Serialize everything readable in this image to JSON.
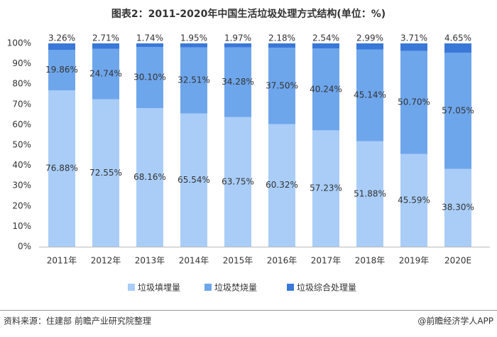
{
  "chart_data": {
    "type": "stacked_bar",
    "title": "图表2：2011-2020年中国生活垃圾处理方式结构(单位：%)",
    "categories": [
      "2011年",
      "2012年",
      "2013年",
      "2014年",
      "2015年",
      "2016年",
      "2017年",
      "2018年",
      "2019年",
      "2020E"
    ],
    "series": [
      {
        "name": "垃圾填埋量",
        "color": "#a9cdf7",
        "values": [
          76.88,
          72.55,
          68.16,
          65.54,
          63.75,
          60.32,
          57.23,
          51.88,
          45.59,
          38.3
        ],
        "value_labels": [
          "76.88%",
          "72.55%",
          "68.16%",
          "65.54%",
          "63.75%",
          "60.32%",
          "57.23%",
          "51.88%",
          "45.59%",
          "38.30%"
        ]
      },
      {
        "name": "垃圾焚烧量",
        "color": "#6ea6ec",
        "values": [
          19.86,
          24.74,
          30.1,
          32.51,
          34.28,
          37.5,
          40.24,
          45.14,
          50.7,
          57.05
        ],
        "value_labels": [
          "19.86%",
          "24.74%",
          "30.10%",
          "32.51%",
          "34.28%",
          "37.50%",
          "40.24%",
          "45.14%",
          "50.70%",
          "57.05%"
        ]
      },
      {
        "name": "垃圾综合处理量",
        "color": "#3a78d8",
        "values": [
          3.26,
          2.71,
          1.74,
          1.95,
          1.97,
          2.18,
          2.54,
          2.99,
          3.71,
          4.65
        ],
        "value_labels": [
          "3.26%",
          "2.71%",
          "1.74%",
          "1.95%",
          "1.97%",
          "2.18%",
          "2.54%",
          "2.99%",
          "3.71%",
          "4.65%"
        ]
      }
    ],
    "ylim": [
      0,
      100
    ],
    "yticks": [
      {
        "value": 0,
        "label": "0%"
      },
      {
        "value": 10,
        "label": "10%"
      },
      {
        "value": 20,
        "label": "20%"
      },
      {
        "value": 30,
        "label": "30%"
      },
      {
        "value": 40,
        "label": "40%"
      },
      {
        "value": 50,
        "label": "50%"
      },
      {
        "value": 60,
        "label": "60%"
      },
      {
        "value": 70,
        "label": "70%"
      },
      {
        "value": 80,
        "label": "80%"
      },
      {
        "value": 90,
        "label": "90%"
      },
      {
        "value": 100,
        "label": "100%"
      }
    ],
    "grid": false,
    "legend": "bottom"
  },
  "footer": {
    "source": "资料来源：住建部 前瞻产业研究院整理",
    "credit": "@前瞻经济学人APP"
  }
}
